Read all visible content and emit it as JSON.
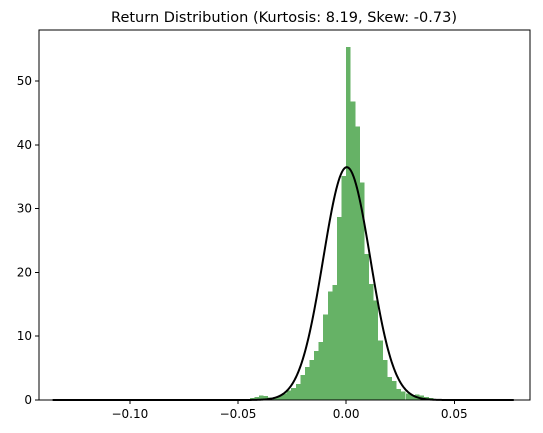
{
  "chart_data": {
    "type": "bar",
    "title": "Return Distribution (Kurtosis: 8.19, Skew: -0.73)",
    "xlabel": "",
    "ylabel": "",
    "xlim": [
      -0.142,
      0.085
    ],
    "ylim": [
      0,
      58
    ],
    "grid": false,
    "legend": "none",
    "x_ticks": [
      {
        "value": -0.1,
        "label": "−0.10"
      },
      {
        "value": -0.05,
        "label": "−0.05"
      },
      {
        "value": 0.0,
        "label": "0.00"
      },
      {
        "value": 0.05,
        "label": "0.05"
      }
    ],
    "y_ticks": [
      {
        "value": 0,
        "label": "0"
      },
      {
        "value": 10,
        "label": "10"
      },
      {
        "value": 20,
        "label": "20"
      },
      {
        "value": 30,
        "label": "30"
      },
      {
        "value": 40,
        "label": "40"
      },
      {
        "value": 50,
        "label": "50"
      }
    ],
    "histogram": {
      "color": "#66b266",
      "bin_width": 0.00212,
      "bins": [
        [
          -0.1357,
          0.08
        ],
        [
          -0.0595,
          0.15
        ],
        [
          -0.054,
          0.15
        ],
        [
          -0.051,
          0.15
        ],
        [
          -0.048,
          0.15
        ],
        [
          -0.0445,
          0.3
        ],
        [
          -0.0424,
          0.45
        ],
        [
          -0.0403,
          0.7
        ],
        [
          -0.0382,
          0.6
        ],
        [
          -0.0361,
          0.4
        ],
        [
          -0.0339,
          0.4
        ],
        [
          -0.0318,
          0.6
        ],
        [
          -0.0297,
          1.0
        ],
        [
          -0.0276,
          1.5
        ],
        [
          -0.0254,
          1.9
        ],
        [
          -0.0233,
          2.5
        ],
        [
          -0.0212,
          3.9
        ],
        [
          -0.0191,
          5.2
        ],
        [
          -0.017,
          6.3
        ],
        [
          -0.0148,
          7.7
        ],
        [
          -0.0127,
          9.1
        ],
        [
          -0.0106,
          13.4
        ],
        [
          -0.0085,
          17.0
        ],
        [
          -0.0064,
          18.0
        ],
        [
          -0.0042,
          28.7
        ],
        [
          -0.0021,
          35.1
        ],
        [
          0.0,
          55.3
        ],
        [
          0.0021,
          46.8
        ],
        [
          0.0042,
          42.9
        ],
        [
          0.0064,
          34.1
        ],
        [
          0.0085,
          22.9
        ],
        [
          0.0106,
          18.2
        ],
        [
          0.0127,
          15.6
        ],
        [
          0.0148,
          9.3
        ],
        [
          0.017,
          6.3
        ],
        [
          0.0191,
          3.6
        ],
        [
          0.0212,
          3.0
        ],
        [
          0.0233,
          1.7
        ],
        [
          0.0254,
          1.3
        ],
        [
          0.0276,
          1.0
        ],
        [
          0.0297,
          0.8
        ],
        [
          0.0318,
          0.9
        ],
        [
          0.0339,
          0.7
        ],
        [
          0.0361,
          0.5
        ],
        [
          0.0382,
          0.3
        ],
        [
          0.0403,
          0.15
        ],
        [
          0.044,
          0.1
        ]
      ]
    },
    "density_curve": {
      "color": "#000000",
      "mean": 0.0003,
      "std": 0.0109,
      "peak": 36.5,
      "x_range": [
        -0.1357,
        0.0775
      ]
    }
  }
}
